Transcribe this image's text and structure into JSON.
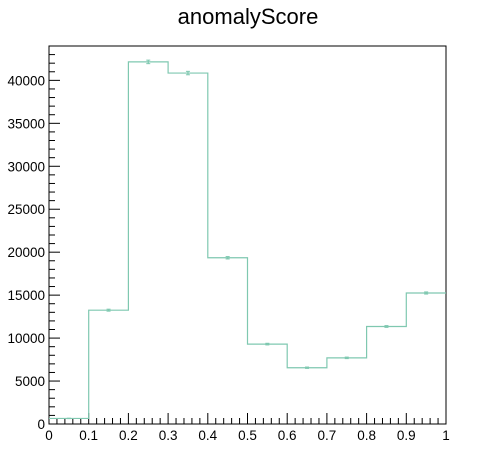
{
  "chart_data": {
    "type": "bar",
    "title": "anomalyScore",
    "xlabel": "",
    "ylabel": "",
    "xlim": [
      0,
      1
    ],
    "ylim": [
      0,
      44000
    ],
    "x_ticks": [
      "0",
      "0.1",
      "0.2",
      "0.3",
      "0.4",
      "0.5",
      "0.6",
      "0.7",
      "0.8",
      "0.9",
      "1"
    ],
    "y_ticks": [
      "0",
      "5000",
      "10000",
      "15000",
      "20000",
      "25000",
      "30000",
      "35000",
      "40000"
    ],
    "bin_edges": [
      0,
      0.1,
      0.2,
      0.3,
      0.4,
      0.5,
      0.6,
      0.7,
      0.8,
      0.9,
      1.0
    ],
    "values": [
      650,
      13250,
      42150,
      40850,
      19350,
      9300,
      6550,
      7700,
      11350,
      15250
    ],
    "errors": [
      25,
      115,
      205,
      200,
      139,
      96,
      81,
      88,
      106,
      124
    ],
    "line_color": "#7fc8b0",
    "grid": false,
    "legend": "none"
  }
}
